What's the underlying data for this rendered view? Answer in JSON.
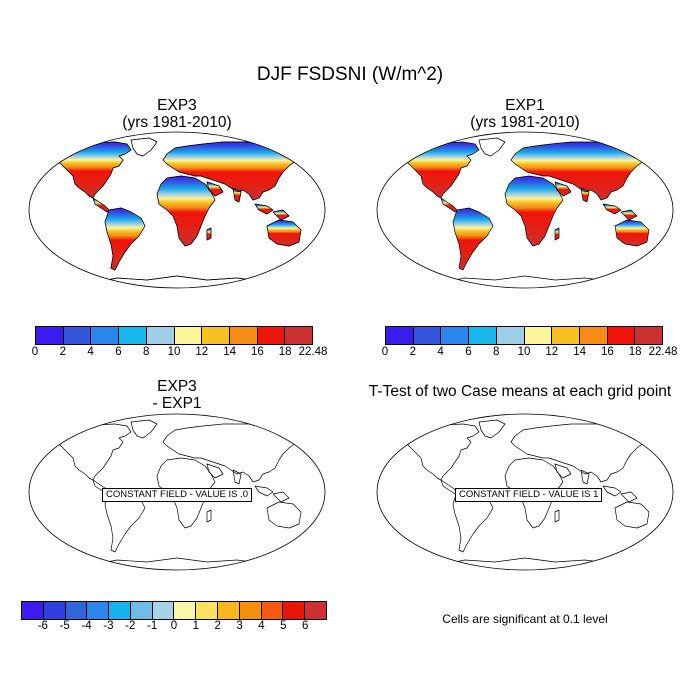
{
  "main_title": "DJF FSDSNI (W/m^2)",
  "panels": {
    "top_left": {
      "title_line1": "EXP3",
      "title_line2": "(yrs 1981-2010)"
    },
    "top_right": {
      "title_line1": "EXP1",
      "title_line2": "(yrs 1981-2010)"
    },
    "bottom_left": {
      "title_line1": "EXP3",
      "title_line2": "- EXP1",
      "constant_label": "CONSTANT FIELD - VALUE IS .0"
    },
    "bottom_right": {
      "title_line1": "T-Test of two Case means at each grid point",
      "constant_label": "CONSTANT FIELD - VALUE IS 1",
      "note": "Cells are significant at 0.1 level"
    }
  },
  "colorbars": {
    "field": {
      "labels": [
        "0",
        "2",
        "4",
        "6",
        "8",
        "10",
        "12",
        "14",
        "16",
        "18",
        "22.48"
      ],
      "colors": [
        "#3c1bf0",
        "#3355dd",
        "#2a86ea",
        "#17b9ec",
        "#9ecfe6",
        "#fcf59a",
        "#f7c022",
        "#f58c16",
        "#f0140c",
        "#cc3030"
      ]
    },
    "difference": {
      "labels": [
        "-6",
        "-5",
        "-4",
        "-3",
        "-2",
        "-1",
        "0",
        "1",
        "2",
        "3",
        "4",
        "5",
        "6"
      ],
      "colors": [
        "#3c1bf0",
        "#2f3fe0",
        "#3066d9",
        "#2a86ea",
        "#17b1ee",
        "#6fbde6",
        "#a6d4e6",
        "#fbf7a8",
        "#fce060",
        "#f7b81e",
        "#f5900d",
        "#f55a10",
        "#e8150a",
        "#cc3030"
      ]
    }
  },
  "chart_data": [
    {
      "type": "heatmap",
      "title": "EXP3 (yrs 1981-2010)",
      "variable": "DJF FSDSNI (W/m^2)",
      "projection": "robinson",
      "colorbar_levels": [
        0,
        2,
        4,
        6,
        8,
        10,
        12,
        14,
        16,
        18,
        22.48
      ],
      "lat_bands": [
        {
          "lat_range": [
            60,
            90
          ],
          "value": 1
        },
        {
          "lat_range": [
            45,
            60
          ],
          "value": 4
        },
        {
          "lat_range": [
            30,
            45
          ],
          "value": 9
        },
        {
          "lat_range": [
            15,
            30
          ],
          "value": 13
        },
        {
          "lat_range": [
            0,
            15
          ],
          "value": 16
        },
        {
          "lat_range": [
            -40,
            0
          ],
          "value": 19
        },
        {
          "lat_range": [
            -90,
            -40
          ],
          "value": 20
        }
      ]
    },
    {
      "type": "heatmap",
      "title": "EXP1 (yrs 1981-2010)",
      "variable": "DJF FSDSNI (W/m^2)",
      "projection": "robinson",
      "colorbar_levels": [
        0,
        2,
        4,
        6,
        8,
        10,
        12,
        14,
        16,
        18,
        22.48
      ],
      "lat_bands": [
        {
          "lat_range": [
            60,
            90
          ],
          "value": 1
        },
        {
          "lat_range": [
            45,
            60
          ],
          "value": 4
        },
        {
          "lat_range": [
            30,
            45
          ],
          "value": 9
        },
        {
          "lat_range": [
            15,
            30
          ],
          "value": 13
        },
        {
          "lat_range": [
            0,
            15
          ],
          "value": 16
        },
        {
          "lat_range": [
            -40,
            0
          ],
          "value": 19
        },
        {
          "lat_range": [
            -90,
            -40
          ],
          "value": 20
        }
      ]
    },
    {
      "type": "heatmap",
      "title": "EXP3 - EXP1",
      "constant_value": 0,
      "colorbar_levels": [
        -6,
        -5,
        -4,
        -3,
        -2,
        -1,
        0,
        1,
        2,
        3,
        4,
        5,
        6
      ]
    },
    {
      "type": "heatmap",
      "title": "T-Test of two Case means at each grid point",
      "constant_value": 1,
      "significance_level": 0.1
    }
  ]
}
